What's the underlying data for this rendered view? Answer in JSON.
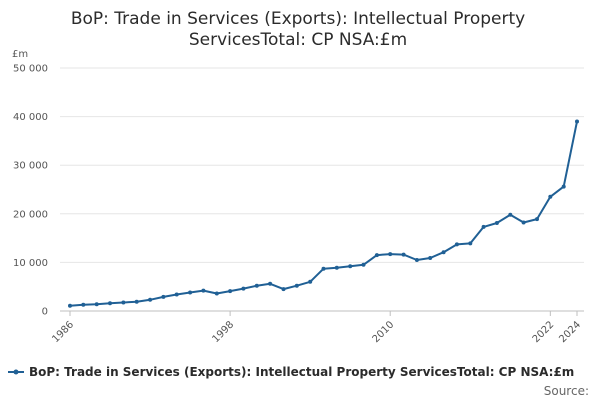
{
  "chart_data": {
    "type": "line",
    "title_lines": [
      "BoP: Trade in Services (Exports): Intellectual Property",
      "ServicesTotal: CP NSA:£m"
    ],
    "y_unit": "£m",
    "ylim": [
      0,
      50000
    ],
    "y_ticks": [
      0,
      10000,
      20000,
      30000,
      40000,
      50000
    ],
    "y_tick_labels": [
      "0",
      "10 000",
      "20 000",
      "30 000",
      "40 000",
      "50 000"
    ],
    "xlim": [
      1986,
      2024
    ],
    "x_tick_labels": [
      "1986",
      "1998",
      "2010",
      "2022",
      "2024"
    ],
    "x_ticks": [
      1986,
      1998,
      2010,
      2022,
      2024
    ],
    "series": [
      {
        "name": "BoP: Trade in Services (Exports): Intellectual Property ServicesTotal: CP NSA:£m",
        "color": "#206095",
        "x": [
          1986,
          1987,
          1988,
          1989,
          1990,
          1991,
          1992,
          1993,
          1994,
          1995,
          1996,
          1997,
          1998,
          1999,
          2000,
          2001,
          2002,
          2003,
          2004,
          2005,
          2006,
          2007,
          2008,
          2009,
          2010,
          2011,
          2012,
          2013,
          2014,
          2015,
          2016,
          2017,
          2018,
          2019,
          2020,
          2021,
          2022,
          2023,
          2024
        ],
        "values": [
          1100,
          1300,
          1400,
          1600,
          1750,
          1900,
          2300,
          2900,
          3400,
          3800,
          4200,
          3600,
          4100,
          4600,
          5200,
          5600,
          4500,
          5200,
          6000,
          8700,
          8900,
          9200,
          9500,
          11500,
          11700,
          11600,
          10500,
          10900,
          12100,
          13700,
          13900,
          17300,
          18100,
          19800,
          18200,
          18900,
          23500,
          25600,
          39000
        ]
      }
    ],
    "legend": "bottom",
    "source_label": "Source:"
  }
}
